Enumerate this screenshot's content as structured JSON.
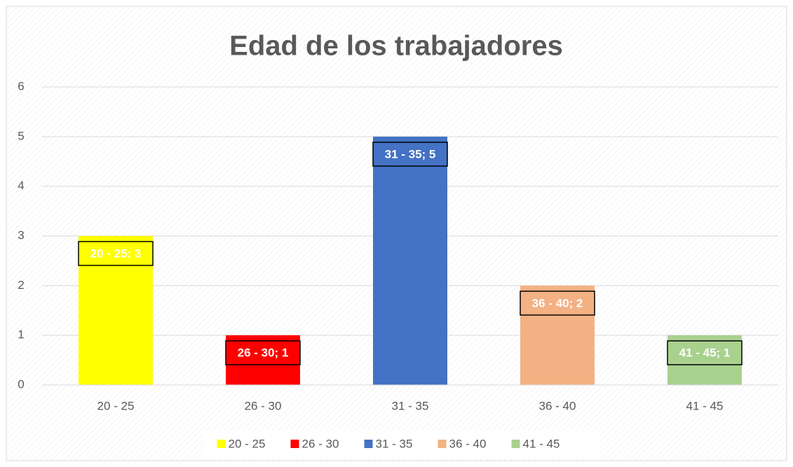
{
  "chart_data": {
    "type": "bar",
    "title": "Edad de los trabajadores",
    "categories": [
      "20 - 25",
      "26 - 30",
      "31 - 35",
      "36 - 40",
      "41 - 45"
    ],
    "values": [
      3,
      1,
      5,
      2,
      1
    ],
    "value_labels": [
      "20 - 25; 3",
      "26 - 30; 1",
      "31 - 35; 5",
      "36 - 40; 2",
      "41 - 45; 1"
    ],
    "colors": [
      "#ffff00",
      "#ff0000",
      "#4472c4",
      "#f4b183",
      "#a9d18e"
    ],
    "ylim": [
      0,
      6
    ],
    "yticks": [
      0,
      1,
      2,
      3,
      4,
      5,
      6
    ],
    "grid": true,
    "legend": "bottom"
  }
}
